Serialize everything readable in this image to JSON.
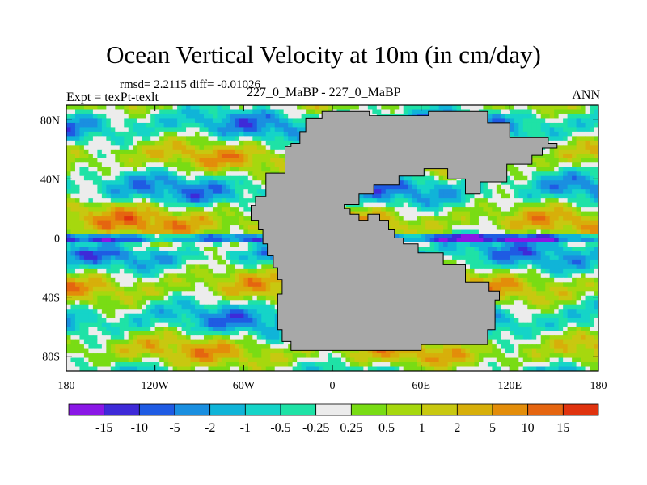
{
  "chart_data": {
    "type": "heatmap",
    "title": "Ocean Vertical Velocity at 10m (in cm/day)",
    "stats_line": "rmsd= 2.2115 diff= -0.01026",
    "left_label": "Expt = texPt-texlt",
    "center_label": "227_0_MaBP - 227_0_MaBP",
    "right_label": "ANN",
    "units": "cm/day",
    "xlim": [
      -180,
      180
    ],
    "ylim": [
      -90,
      90
    ],
    "x_ticks": [
      {
        "value": -180,
        "label": "180"
      },
      {
        "value": -120,
        "label": "120W"
      },
      {
        "value": -60,
        "label": "60W"
      },
      {
        "value": 0,
        "label": "0"
      },
      {
        "value": 60,
        "label": "60E"
      },
      {
        "value": 120,
        "label": "120E"
      },
      {
        "value": 180,
        "label": "180"
      }
    ],
    "y_ticks": [
      {
        "value": 80,
        "label": "80N"
      },
      {
        "value": 40,
        "label": "40N"
      },
      {
        "value": 0,
        "label": "0"
      },
      {
        "value": -40,
        "label": "40S"
      },
      {
        "value": -80,
        "label": "80S"
      }
    ],
    "colorbar": {
      "colors": [
        "#8a17e6",
        "#3e2ad8",
        "#1f5be3",
        "#1a8fe0",
        "#10b4d8",
        "#15d4c8",
        "#1fe2a6",
        "#ececec",
        "#79dc14",
        "#a6d80e",
        "#c8c810",
        "#d7af0a",
        "#e38d0a",
        "#e56510",
        "#e0330f"
      ],
      "labels": [
        "-15",
        "-10",
        "-5",
        "-2",
        "-1",
        "-0.5",
        "-0.25",
        "0.25",
        "0.5",
        "1",
        "2",
        "5",
        "10",
        "15"
      ]
    },
    "land_mask": {
      "color": "#a8a8a8",
      "outline": [
        [
          -32,
          62
        ],
        [
          -32,
          44
        ],
        [
          -45,
          44
        ],
        [
          -45,
          28
        ],
        [
          -52,
          28
        ],
        [
          -52,
          22
        ],
        [
          -55,
          22
        ],
        [
          -55,
          12
        ],
        [
          -50,
          12
        ],
        [
          -50,
          6
        ],
        [
          -47,
          6
        ],
        [
          -47,
          -4
        ],
        [
          -44,
          -4
        ],
        [
          -44,
          -12
        ],
        [
          -40,
          -12
        ],
        [
          -40,
          -20
        ],
        [
          -37,
          -20
        ],
        [
          -37,
          -28
        ],
        [
          -34,
          -28
        ],
        [
          -34,
          -38
        ],
        [
          -37,
          -38
        ],
        [
          -37,
          -62
        ],
        [
          -34,
          -62
        ],
        [
          -34,
          -70
        ],
        [
          -28,
          -70
        ],
        [
          -28,
          -76
        ],
        [
          60,
          -76
        ],
        [
          60,
          -72
        ],
        [
          105,
          -72
        ],
        [
          105,
          -62
        ],
        [
          110,
          -62
        ],
        [
          110,
          -42
        ],
        [
          113,
          -42
        ],
        [
          113,
          -36
        ],
        [
          106,
          -36
        ],
        [
          106,
          -30
        ],
        [
          90,
          -30
        ],
        [
          90,
          -18
        ],
        [
          75,
          -18
        ],
        [
          75,
          -10
        ],
        [
          58,
          -10
        ],
        [
          58,
          -4
        ],
        [
          48,
          -4
        ],
        [
          48,
          0
        ],
        [
          42,
          0
        ],
        [
          42,
          6
        ],
        [
          38,
          6
        ],
        [
          38,
          12
        ],
        [
          32,
          12
        ],
        [
          32,
          16
        ],
        [
          24,
          16
        ],
        [
          24,
          12
        ],
        [
          18,
          12
        ],
        [
          18,
          16
        ],
        [
          12,
          16
        ],
        [
          12,
          20
        ],
        [
          8,
          20
        ],
        [
          8,
          23
        ],
        [
          18,
          23
        ],
        [
          18,
          30
        ],
        [
          28,
          30
        ],
        [
          28,
          36
        ],
        [
          45,
          36
        ],
        [
          45,
          42
        ],
        [
          62,
          42
        ],
        [
          62,
          47
        ],
        [
          78,
          47
        ],
        [
          78,
          40
        ],
        [
          90,
          40
        ],
        [
          90,
          30
        ],
        [
          100,
          30
        ],
        [
          100,
          38
        ],
        [
          118,
          38
        ],
        [
          118,
          50
        ],
        [
          135,
          50
        ],
        [
          135,
          56
        ],
        [
          142,
          56
        ],
        [
          142,
          61
        ],
        [
          152,
          61
        ],
        [
          152,
          64
        ],
        [
          146,
          64
        ],
        [
          146,
          68
        ],
        [
          120,
          68
        ],
        [
          120,
          78
        ],
        [
          105,
          78
        ],
        [
          105,
          86
        ],
        [
          65,
          86
        ],
        [
          65,
          83
        ],
        [
          25,
          83
        ],
        [
          25,
          86
        ],
        [
          -7,
          86
        ],
        [
          -7,
          81
        ],
        [
          -18,
          81
        ],
        [
          -18,
          72
        ],
        [
          -22,
          72
        ],
        [
          -22,
          64
        ],
        [
          -28,
          64
        ],
        [
          -28,
          62
        ]
      ]
    }
  }
}
